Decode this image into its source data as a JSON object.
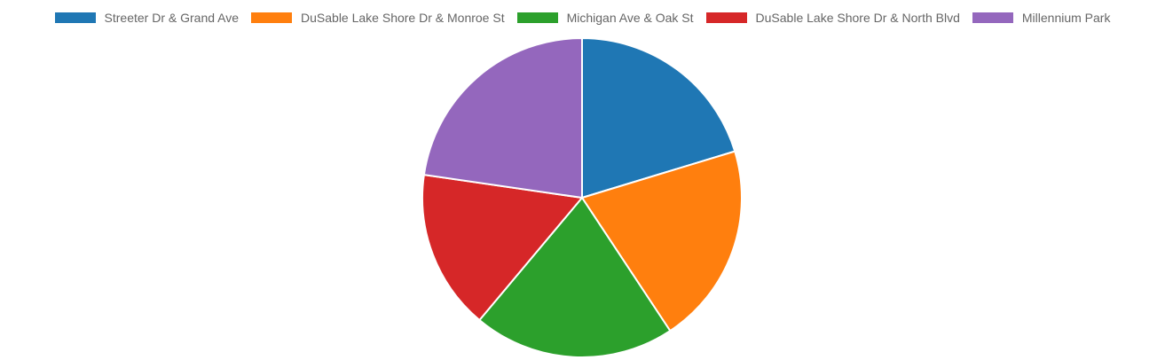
{
  "chart_data": {
    "type": "pie",
    "categories": [
      "Streeter Dr & Grand Ave",
      "DuSable Lake Shore Dr & Monroe St",
      "Michigan Ave & Oak St",
      "DuSable Lake Shore Dr & North Blvd",
      "Millennium Park"
    ],
    "values": [
      20.3,
      20.4,
      20.4,
      16.2,
      22.7
    ],
    "colors": [
      "#1f77b4",
      "#ff7f0e",
      "#2ca02c",
      "#d62728",
      "#9467bd"
    ],
    "title": "",
    "legend_position": "top"
  }
}
